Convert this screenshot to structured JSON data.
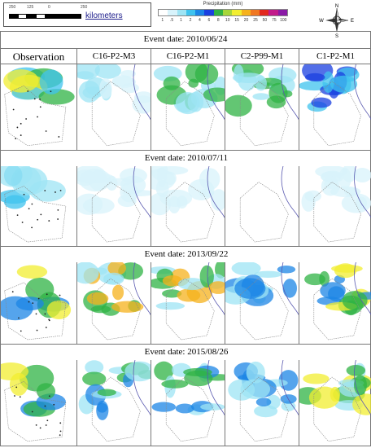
{
  "scale_bar": {
    "ticks": [
      "250",
      "125",
      "0",
      "250"
    ],
    "unit": "kilometers"
  },
  "legend": {
    "title": "Precipitation (mm)",
    "values": [
      "1",
      ".5",
      "1",
      "2",
      "4",
      "6",
      "8",
      "10",
      "15",
      "20",
      "25",
      "50",
      "75",
      "100"
    ],
    "colors": [
      "#ffffff",
      "#d8f3fb",
      "#9ee4f4",
      "#3fc3ee",
      "#1c86e6",
      "#1a3fe0",
      "#2fb344",
      "#a6d63a",
      "#f2ee30",
      "#f6b21c",
      "#f07822",
      "#e2281e",
      "#c21a8a",
      "#8a1aa6"
    ]
  },
  "compass": {
    "n": "N",
    "s": "S",
    "e": "E",
    "w": "W"
  },
  "columns": [
    "Observation",
    "C16-P2-M3",
    "C16-P2-M1",
    "C2-P99-M1",
    "C1-P2-M1"
  ],
  "events": [
    {
      "label": "Event date: 2010/06/24"
    },
    {
      "label": "Event date: 2010/07/11"
    },
    {
      "label": "Event date: 2013/09/22"
    },
    {
      "label": "Event date: 2015/08/26"
    }
  ]
}
